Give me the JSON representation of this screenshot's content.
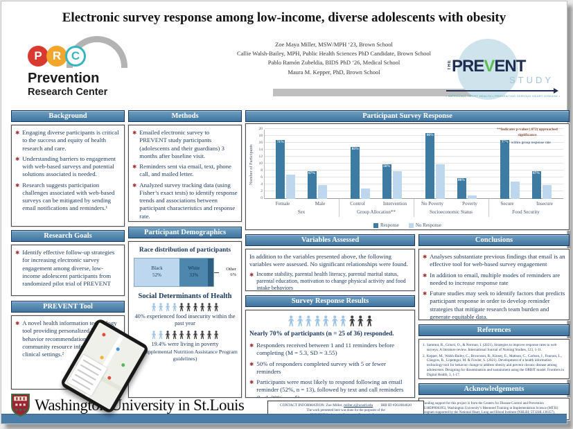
{
  "poster": {
    "title": "Electronic survey response among low-income, diverse adolescents with obesity",
    "authors": [
      "Zoe Maya Miller, MSW/MPH ‘23, Brown School",
      "Callie Walsh-Bailey, MPH, Public Health Sciences PhD Candidate, Brown School",
      "Pablo Ramón Zubeldia, BIDS PhD ‘26, Medical School",
      "Maura M. Kepper, PhD, Brown School"
    ]
  },
  "logos": {
    "prc": {
      "letters": [
        "P",
        "R",
        "C"
      ],
      "letter_colors": [
        "#D93A30",
        "#F2A62B",
        "#35B5BC"
      ],
      "line1": "Prevention",
      "line2": "Research Center"
    },
    "prevent": {
      "the": "THE",
      "name_parts": [
        "PRE",
        "V",
        "ENT"
      ],
      "study": "STUDY",
      "tagline": "• IMPROVING HEART HEALTH • PREVENTING SERIOUS HEART DISEASE •",
      "navy": "#1E2D50",
      "green": "#5BBF4E",
      "light_blue": "#9fc6d6"
    },
    "washu": {
      "text": "Washington University in St.Louis"
    }
  },
  "sections": {
    "background": {
      "title": "Background",
      "bullets": [
        "Engaging diverse participants is critical to the success and equity of health research and care.",
        "Understanding barriers to engagement with web-based surveys and potential solutions associated is needed.",
        "Research suggests participation challenges associated with web-based surveys can be mitigated by sending email notifications and reminders.¹"
      ]
    },
    "research_goals": {
      "title": "Research Goals",
      "bullets": [
        "Identify effective follow-up strategies for increasing electronic survey engagement among diverse, low-income adolescent participants from randomized pilot trial of PREVENT"
      ]
    },
    "prevent_tool": {
      "title": "PREVENT Tool",
      "bullets": [
        "A novel health information technology tool providing personalized health behavior recommendations and community resource information in clinical settings.²"
      ]
    },
    "methods": {
      "title": "Methods",
      "bullets": [
        "Emailed electronic survey to PREVENT study participants (adolescents and their guardians) 3 months after baseline visit.",
        "Reminders sent via email, text, phone call, and mailed letter.",
        "Analyzed survey tracking data (using Fisher’s exact tests) to identify response trends and associations between participant characteristics and response rate."
      ]
    },
    "demographics": {
      "title": "Participant Demographics",
      "race_title": "Race distribution of participants",
      "race": {
        "segments": [
          {
            "label": "Black",
            "pct": "52%",
            "value": 52,
            "color": "#BDD7EE",
            "text_color": "#17365D",
            "show_label": true
          },
          {
            "label": "White",
            "pct": "33%",
            "value": 33,
            "color": "#4D87AE",
            "text_color": "#10324F",
            "show_label": true
          },
          {
            "label": "Other",
            "pct": "6%",
            "value": 6,
            "color": "#2E5E80",
            "show_label": false
          }
        ]
      },
      "sdoh_title": "Social Determinants of Health",
      "person_colors": {
        "light": "#9DC3E6",
        "dark": "#3F3F3F"
      },
      "rows": [
        {
          "total": 10,
          "light": 4,
          "caption": "40% experienced food insecurity within the past year",
          "sub": ""
        },
        {
          "total": 10,
          "light": 2,
          "caption": "19.4% were living in poverty",
          "sub": "(per Supplemental Nutrition Assistance Program guidelines)"
        }
      ]
    },
    "variables": {
      "title": "Variables Assessed",
      "intro": "In addition to the variables presented above, the following variables were assessed. No significant relationships were found.",
      "bullets": [
        "Income stability, parental health literacy, parental marital status, parental education, motivation to change physical activity and food intake behaviors"
      ]
    },
    "results": {
      "title": "Survey Response Results",
      "icons": {
        "total": 10,
        "light": 7
      },
      "lead": "Nearly 70% of participants (n = 25 of 36) responded.",
      "bullets": [
        "Responders received between 1 and 11 reminders before completing (M = 5.3, SD = 3.55)",
        "50% of responders completed survey with 5 or fewer reminders",
        "Participants were most likely to respond following an email reminder (52%, n = 13), followed by text and call reminders (both 20%, n = 5)."
      ]
    },
    "conclusions": {
      "title": "Conclusions",
      "bullets": [
        "Analyses substantiate previous findings that email is an effective tool for web-based survey engagement",
        "In addition to email, multiple modes of reminders are needed to increase response rate",
        "Future studies may seek to identify factors that predicts participant response in order to develop reminder strategies that mitigate research team burden and generate equitable data."
      ]
    },
    "references": {
      "title": "References",
      "items": [
        "Sammut, R., Griscti, O., & Norman, I. (2021). Strategies to improve response rates to web surveys: A literature review. International Journal of Nursing Studies, 123, 1-11.",
        "Kepper, M., Walsh-Bailey, C., Brownson, R., Kinsey, E., Mattson, C., Carlson, J., Fearson, L., Glasgow, R., Lopetegui, M. & Fowler, S. (2021). Development of a health information technology tool for behavior change to address obesity and prevent chronic disease among adolescents: Designing for dissemination and sustainment using the ORBIT model. Frontiers in Digital Health, 3, 1-17."
      ]
    },
    "acknowledgements": {
      "title": "Acknowledgements",
      "text": "Funding support for this project is from the Centers for Disease Control and Prevention (U48DP006395), Washington University’s Mentored Training in Implementation Science (MTIS) program supported by the National Heart, Lung and Blood Institute (NHLBI; 5T32HL130357), Washington University’s Institute for Informatics and Health Intervention Lab Big Ideas Competition and grant #IRG-58-010-61 from the American Cancer Society"
    }
  },
  "chart_data": {
    "type": "bar",
    "title": "Participant Survey Response",
    "ylabel": "Number of Participants",
    "ylim": [
      0,
      20
    ],
    "ytick_step": 2,
    "grid": true,
    "legend_position": "bottom",
    "groups": [
      {
        "label": "Sex",
        "categories": [
          "Female",
          "Male"
        ]
      },
      {
        "label": "Group Allocation**",
        "categories": [
          "Control",
          "Intervention"
        ]
      },
      {
        "label": "Socioeconomic Status",
        "categories": [
          "No Poverty",
          "Poverty"
        ]
      },
      {
        "label": "Food Security",
        "categories": [
          "Secure",
          "Insecure"
        ]
      }
    ],
    "series": [
      {
        "name": "Response",
        "color": "#3D7BA3",
        "values": [
          17,
          8,
          15,
          10,
          19,
          6,
          17,
          8
        ],
        "bar_labels": [
          "71%",
          "67%",
          "83%",
          "56%",
          "66%",
          "86%",
          "77%",
          "67%"
        ]
      },
      {
        "name": "No Response",
        "color": "#BDD7EE",
        "values": [
          7,
          4,
          3,
          8,
          10,
          1,
          5,
          4
        ]
      }
    ],
    "annotations": [
      "**Indicates p-value (.072) approached significance",
      "% = within group response rate"
    ]
  },
  "footer": {
    "contact_label": "CONTACT INFORMATION:",
    "contact_name": "Zoe Miller,",
    "contact_email": "miller.z@wustl.edu",
    "irb": "IRB ID #202004020",
    "note1": "The work presented here was done for the purposes of the",
    "note2": "PREVENT Study at the Prevention Research Center."
  }
}
